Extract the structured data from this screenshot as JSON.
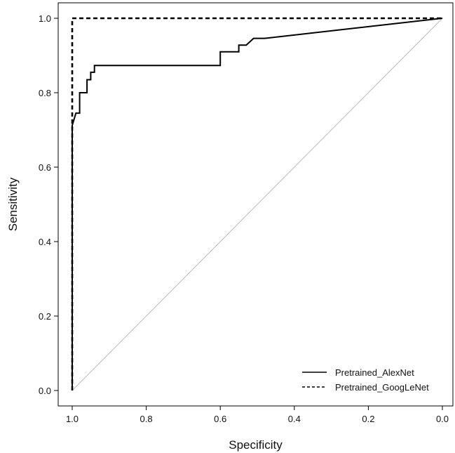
{
  "chart_data": {
    "type": "line",
    "title": "",
    "xlabel": "Specificity",
    "ylabel": "Sensitivity",
    "xlim": [
      1.0,
      0.0
    ],
    "ylim": [
      0.0,
      1.0
    ],
    "x_reversed": true,
    "grid": false,
    "legend_position": "bottom-right",
    "x_ticks": [
      {
        "value": 1.0,
        "label": "1.0"
      },
      {
        "value": 0.8,
        "label": "0.8"
      },
      {
        "value": 0.6,
        "label": "0.6"
      },
      {
        "value": 0.4,
        "label": "0.4"
      },
      {
        "value": 0.2,
        "label": "0.2"
      },
      {
        "value": 0.0,
        "label": "0.0"
      }
    ],
    "y_ticks": [
      {
        "value": 0.0,
        "label": "0.0"
      },
      {
        "value": 0.2,
        "label": "0.2"
      },
      {
        "value": 0.4,
        "label": "0.4"
      },
      {
        "value": 0.6,
        "label": "0.6"
      },
      {
        "value": 0.8,
        "label": "0.8"
      },
      {
        "value": 1.0,
        "label": "1.0"
      }
    ],
    "reference_line": {
      "x": [
        1.0,
        0.0
      ],
      "y": [
        0.0,
        1.0
      ],
      "color": "#bbbbbb"
    },
    "series": [
      {
        "name": "Pretrained_AlexNet",
        "style": "solid",
        "color": "#000000",
        "x": [
          1.0,
          1.0,
          0.99,
          0.98,
          0.98,
          0.96,
          0.96,
          0.95,
          0.95,
          0.94,
          0.94,
          0.93,
          0.93,
          0.6,
          0.6,
          0.55,
          0.55,
          0.53,
          0.51,
          0.48,
          0.0
        ],
        "y": [
          0.0,
          0.712,
          0.745,
          0.745,
          0.8,
          0.8,
          0.835,
          0.835,
          0.855,
          0.855,
          0.873,
          0.873,
          0.873,
          0.873,
          0.91,
          0.91,
          0.928,
          0.928,
          0.946,
          0.946,
          1.0
        ]
      },
      {
        "name": "Pretrained_GoogLeNet",
        "style": "dashed",
        "color": "#000000",
        "x": [
          1.0,
          1.0,
          0.0
        ],
        "y": [
          0.0,
          1.0,
          1.0
        ]
      }
    ]
  }
}
